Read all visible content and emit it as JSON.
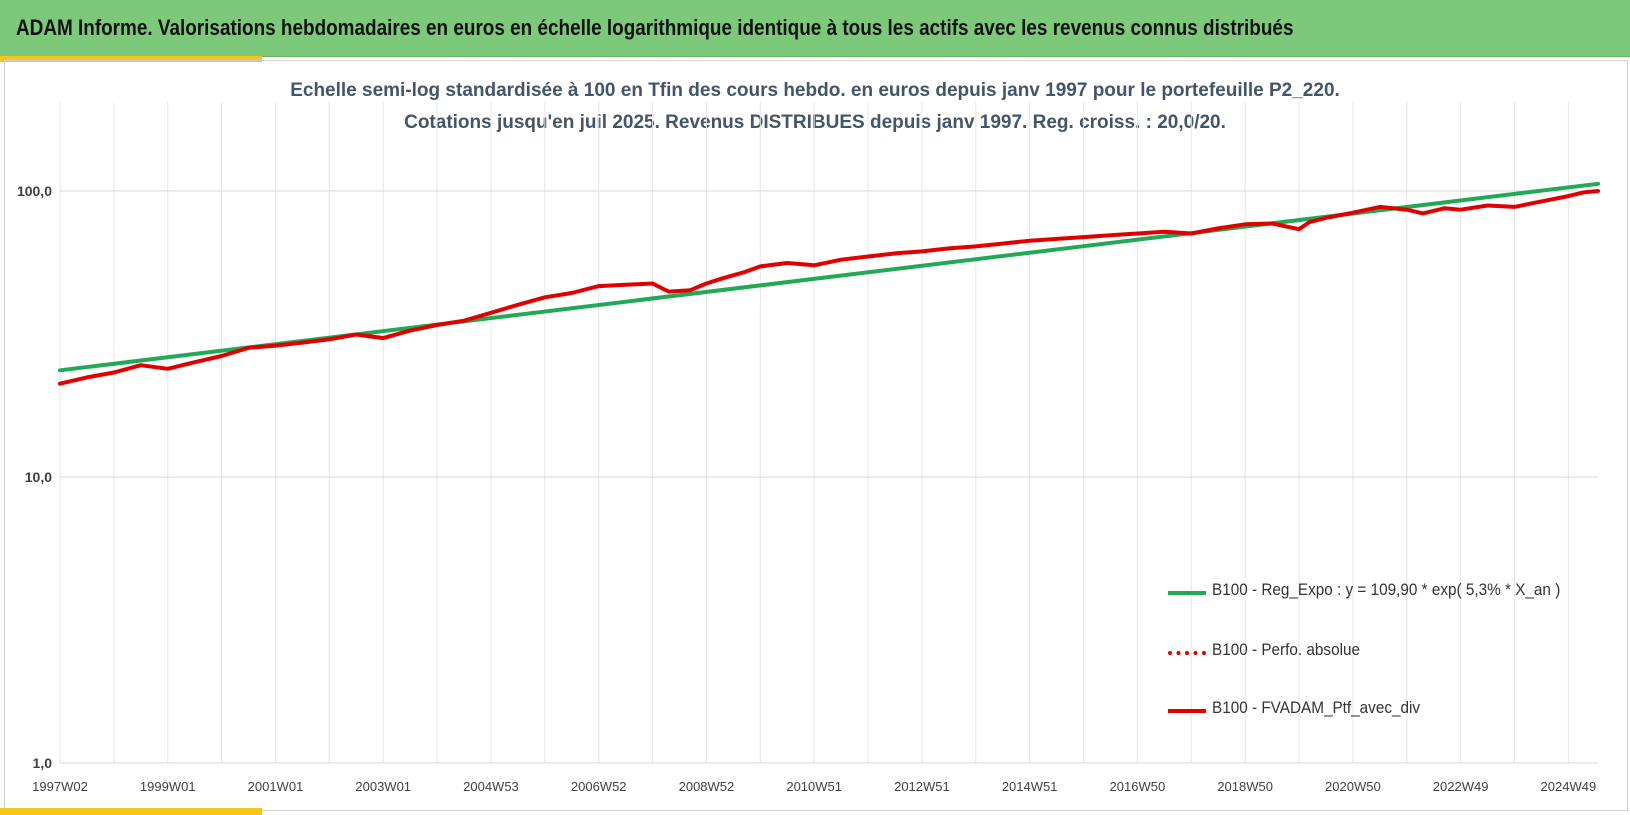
{
  "banner": {
    "title": "ADAM Informe. Valorisations hebdomadaires en euros en échelle logarithmique identique à tous les actifs avec les revenus connus distribués",
    "background": "#7dc97a",
    "accent": "#f5c518"
  },
  "chart_data": {
    "type": "line",
    "title": "Echelle semi-log standardisée  à 100 en Tfin des cours hebdo.  en euros depuis janv 1997 pour le portefeuille P2_220.",
    "subtitle": "Cotations  jusqu'en juil 2025. Revenus DISTRIBUES depuis janv 1997. Reg. croiss. : 20,0/20.",
    "xlabel": "",
    "ylabel": "",
    "y_scale": "log",
    "ylim": [
      1,
      200
    ],
    "xlim": [
      1997.0,
      2025.55
    ],
    "y_ticks": [
      "1,0",
      "10,0",
      "100,0"
    ],
    "y_tick_values": [
      1,
      10,
      100
    ],
    "x_ticks": [
      "1997W02",
      "1999W01",
      "2001W01",
      "2003W01",
      "2004W53",
      "2006W52",
      "2008W52",
      "2010W51",
      "2012W51",
      "2014W51",
      "2016W50",
      "2018W50",
      "2020W50",
      "2022W49",
      "2024W49"
    ],
    "x_tick_values": [
      1997.0,
      1999.0,
      2001.0,
      2003.0,
      2005.0,
      2007.0,
      2009.0,
      2011.0,
      2013.0,
      2015.0,
      2017.0,
      2019.0,
      2021.0,
      2023.0,
      2025.0
    ],
    "grid": true,
    "legend_position": "bottom-right",
    "series": [
      {
        "name": "B100 - Reg_Expo : y = 109,90 * exp( 5,3% *  X_an )",
        "color": "#21a956",
        "style": "solid",
        "x": [
          1997.0,
          2025.55
        ],
        "y": [
          23.6,
          106.0
        ]
      },
      {
        "name": "B100 - Perfo. absolue",
        "color": "#e00000",
        "style": "dotted",
        "x": [],
        "y": []
      },
      {
        "name": "B100 - FVADAM_Ptf_avec_div",
        "color": "#e00000",
        "style": "solid",
        "x": [
          1997.0,
          1997.5,
          1998.0,
          1998.5,
          1999.0,
          1999.5,
          2000.0,
          2000.5,
          2001.0,
          2001.5,
          2002.0,
          2002.5,
          2003.0,
          2003.5,
          2004.0,
          2004.5,
          2005.0,
          2005.5,
          2006.0,
          2006.5,
          2007.0,
          2007.5,
          2008.0,
          2008.3,
          2008.7,
          2009.0,
          2009.3,
          2009.7,
          2010.0,
          2010.5,
          2011.0,
          2011.5,
          2012.0,
          2012.5,
          2013.0,
          2013.5,
          2014.0,
          2014.5,
          2015.0,
          2015.5,
          2016.0,
          2016.5,
          2017.0,
          2017.5,
          2018.0,
          2018.5,
          2019.0,
          2019.5,
          2020.0,
          2020.2,
          2020.5,
          2021.0,
          2021.5,
          2022.0,
          2022.3,
          2022.7,
          2023.0,
          2023.5,
          2024.0,
          2024.5,
          2025.0,
          2025.3,
          2025.55
        ],
        "y": [
          21.2,
          22.3,
          23.2,
          24.6,
          23.9,
          25.2,
          26.5,
          28.3,
          28.8,
          29.5,
          30.3,
          31.5,
          30.6,
          32.5,
          34.0,
          35.2,
          37.5,
          40.0,
          42.5,
          44.0,
          46.5,
          47.0,
          47.5,
          44.5,
          45.0,
          47.5,
          49.5,
          52.0,
          54.5,
          56.0,
          55.0,
          57.5,
          59.0,
          60.5,
          61.5,
          63.0,
          64.0,
          65.5,
          67.0,
          68.0,
          69.0,
          70.0,
          71.0,
          72.0,
          71.0,
          74.0,
          76.5,
          77.0,
          73.5,
          78.0,
          80.5,
          84.0,
          88.0,
          86.0,
          83.5,
          87.0,
          86.0,
          89.0,
          88.0,
          92.0,
          96.0,
          99.0,
          100.0
        ]
      }
    ]
  }
}
